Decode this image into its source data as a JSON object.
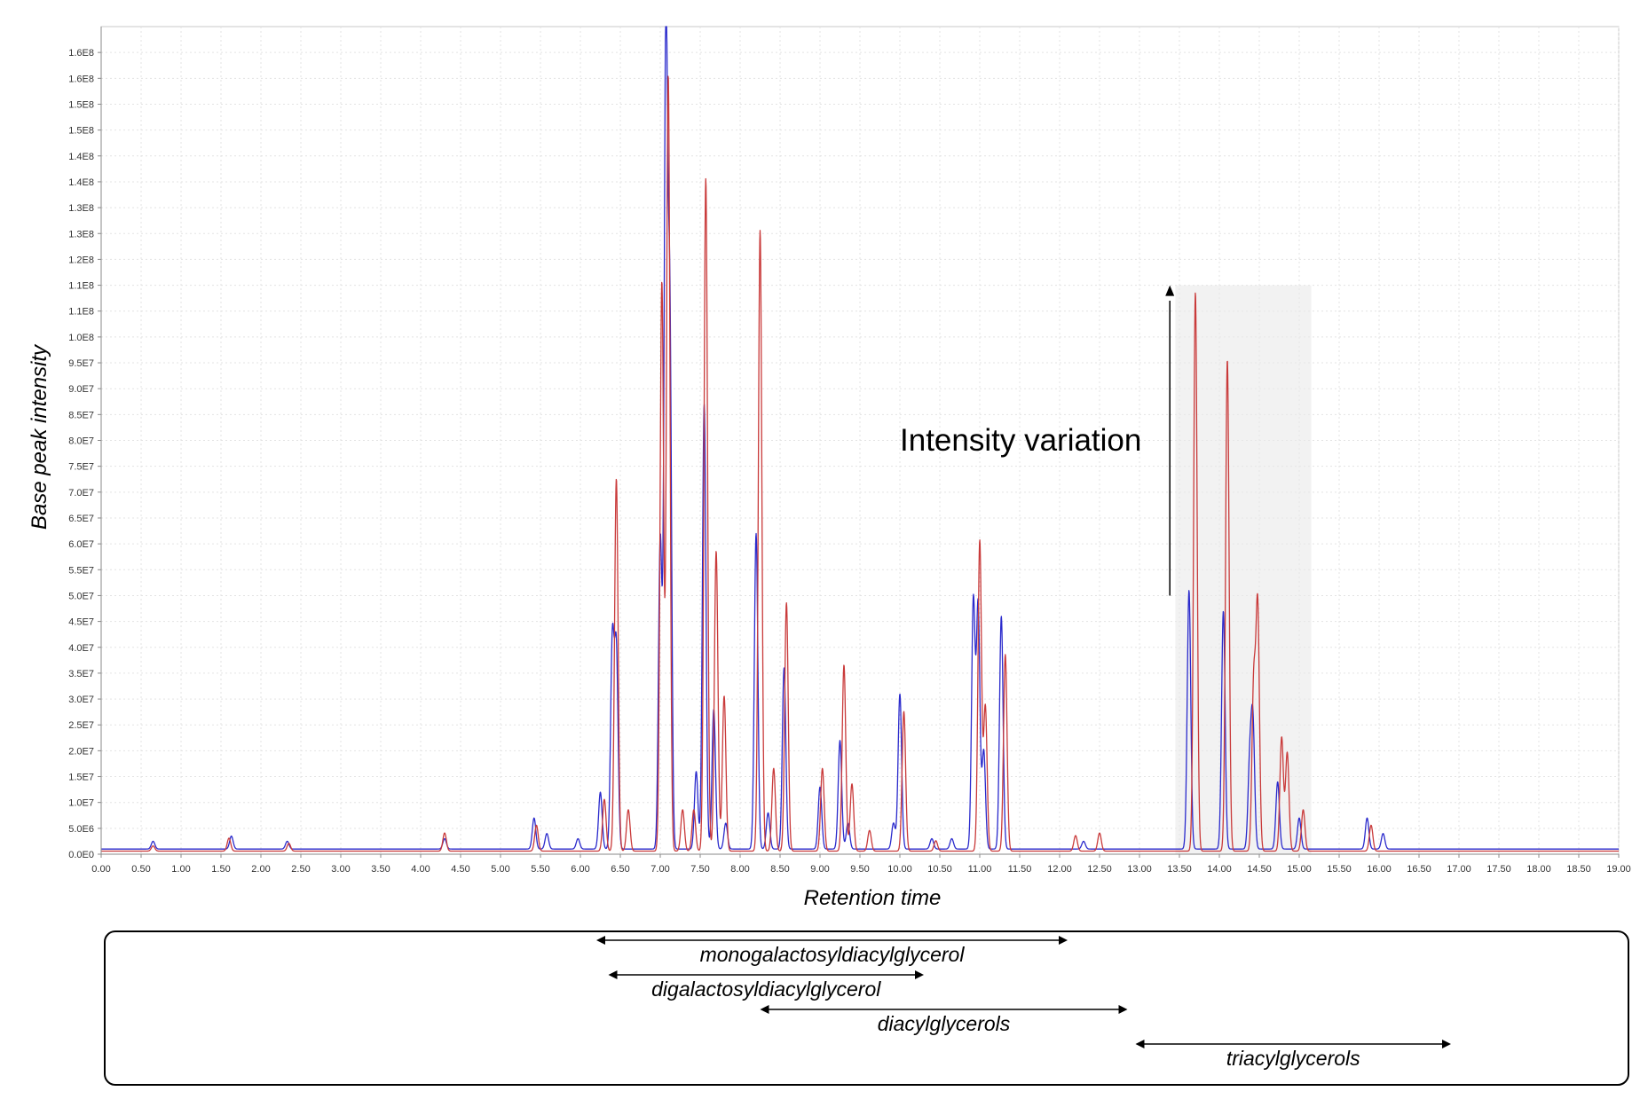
{
  "chart_data": {
    "type": "line",
    "xlabel": "Retention time",
    "ylabel": "Base peak intensity",
    "xlim": [
      0,
      19
    ],
    "ylim": [
      0,
      160000000
    ],
    "x_ticks": [
      "0.00",
      "0.50",
      "1.00",
      "1.50",
      "2.00",
      "2.50",
      "3.00",
      "3.50",
      "4.00",
      "4.50",
      "5.00",
      "5.50",
      "6.00",
      "6.50",
      "7.00",
      "7.50",
      "8.00",
      "8.50",
      "9.00",
      "9.50",
      "10.00",
      "10.50",
      "11.00",
      "11.50",
      "12.00",
      "12.50",
      "13.00",
      "13.50",
      "14.00",
      "14.50",
      "15.00",
      "15.50",
      "16.00",
      "16.50",
      "17.00",
      "17.50",
      "18.00",
      "18.50",
      "19.00"
    ],
    "y_ticks": [
      "0.0E0",
      "5.0E6",
      "1.0E7",
      "1.5E7",
      "2.0E7",
      "2.5E7",
      "3.0E7",
      "3.5E7",
      "4.0E7",
      "4.5E7",
      "5.0E7",
      "5.5E7",
      "6.0E7",
      "6.5E7",
      "7.0E7",
      "7.5E7",
      "8.0E7",
      "8.5E7",
      "9.0E7",
      "9.5E7",
      "1.0E8",
      "1.1E8",
      "1.1E8",
      "1.2E8",
      "1.3E8",
      "1.3E8",
      "1.4E8",
      "1.4E8",
      "1.5E8",
      "1.5E8",
      "1.6E8",
      "1.6E8"
    ],
    "grid": true,
    "series": [
      {
        "color": "#2a2acc",
        "baseline": 1000000,
        "peaks": [
          [
            0.65,
            1500000
          ],
          [
            1.63,
            2500000
          ],
          [
            2.33,
            1500000
          ],
          [
            4.3,
            2000000
          ],
          [
            5.42,
            6000000
          ],
          [
            5.58,
            3000000
          ],
          [
            5.97,
            2000000
          ],
          [
            6.25,
            11000000
          ],
          [
            6.4,
            40000000
          ],
          [
            6.45,
            38000000
          ],
          [
            7.0,
            60000000
          ],
          [
            7.07,
            157000000
          ],
          [
            7.12,
            100000000
          ],
          [
            7.45,
            15000000
          ],
          [
            7.55,
            86000000
          ],
          [
            7.67,
            27000000
          ],
          [
            7.82,
            5000000
          ],
          [
            8.2,
            61000000
          ],
          [
            8.35,
            7000000
          ],
          [
            8.55,
            35000000
          ],
          [
            9.0,
            12000000
          ],
          [
            9.25,
            21000000
          ],
          [
            9.35,
            5000000
          ],
          [
            9.92,
            5000000
          ],
          [
            10.0,
            30000000
          ],
          [
            10.4,
            2000000
          ],
          [
            10.65,
            2000000
          ],
          [
            10.92,
            48000000
          ],
          [
            10.98,
            47000000
          ],
          [
            11.05,
            19000000
          ],
          [
            11.27,
            45000000
          ],
          [
            12.3,
            1500000
          ],
          [
            13.62,
            50000000
          ],
          [
            14.05,
            46000000
          ],
          [
            14.38,
            16000000
          ],
          [
            14.42,
            24000000
          ],
          [
            14.73,
            13000000
          ],
          [
            15.0,
            6000000
          ],
          [
            15.85,
            6000000
          ],
          [
            16.05,
            3000000
          ]
        ]
      },
      {
        "color": "#c93a3a",
        "baseline": 600000,
        "peaks": [
          [
            0.65,
            1000000
          ],
          [
            1.6,
            2500000
          ],
          [
            2.35,
            1500000
          ],
          [
            4.3,
            3500000
          ],
          [
            5.45,
            5000000
          ],
          [
            6.3,
            10000000
          ],
          [
            6.45,
            72000000
          ],
          [
            6.6,
            8000000
          ],
          [
            7.02,
            110000000
          ],
          [
            7.1,
            150000000
          ],
          [
            7.28,
            8000000
          ],
          [
            7.42,
            8000000
          ],
          [
            7.57,
            130000000
          ],
          [
            7.7,
            58000000
          ],
          [
            7.8,
            30000000
          ],
          [
            8.25,
            120000000
          ],
          [
            8.42,
            16000000
          ],
          [
            8.58,
            48000000
          ],
          [
            9.03,
            16000000
          ],
          [
            9.3,
            36000000
          ],
          [
            9.4,
            13000000
          ],
          [
            9.62,
            4000000
          ],
          [
            10.05,
            27000000
          ],
          [
            10.45,
            2000000
          ],
          [
            11.0,
            60000000
          ],
          [
            11.07,
            28000000
          ],
          [
            11.32,
            38000000
          ],
          [
            12.2,
            3000000
          ],
          [
            12.5,
            3500000
          ],
          [
            13.7,
            108000000
          ],
          [
            14.1,
            95000000
          ],
          [
            14.43,
            32000000
          ],
          [
            14.48,
            47000000
          ],
          [
            14.78,
            22000000
          ],
          [
            14.85,
            19000000
          ],
          [
            15.05,
            8000000
          ],
          [
            15.9,
            5000000
          ]
        ]
      }
    ],
    "annotation": "Intensity variation",
    "highlight": {
      "x": [
        13.45,
        15.15
      ],
      "y": [
        0,
        110000000
      ]
    },
    "lipid_classes": [
      {
        "label": "monogalactosyldiacylglycerol",
        "from": 6.2,
        "to": 12.1
      },
      {
        "label": "digalactosyldiacylglycerol",
        "from": 6.35,
        "to": 10.3
      },
      {
        "label": "diacylglycerols",
        "from": 8.25,
        "to": 12.85
      },
      {
        "label": "triacylglycerols",
        "from": 12.95,
        "to": 16.9
      }
    ]
  }
}
